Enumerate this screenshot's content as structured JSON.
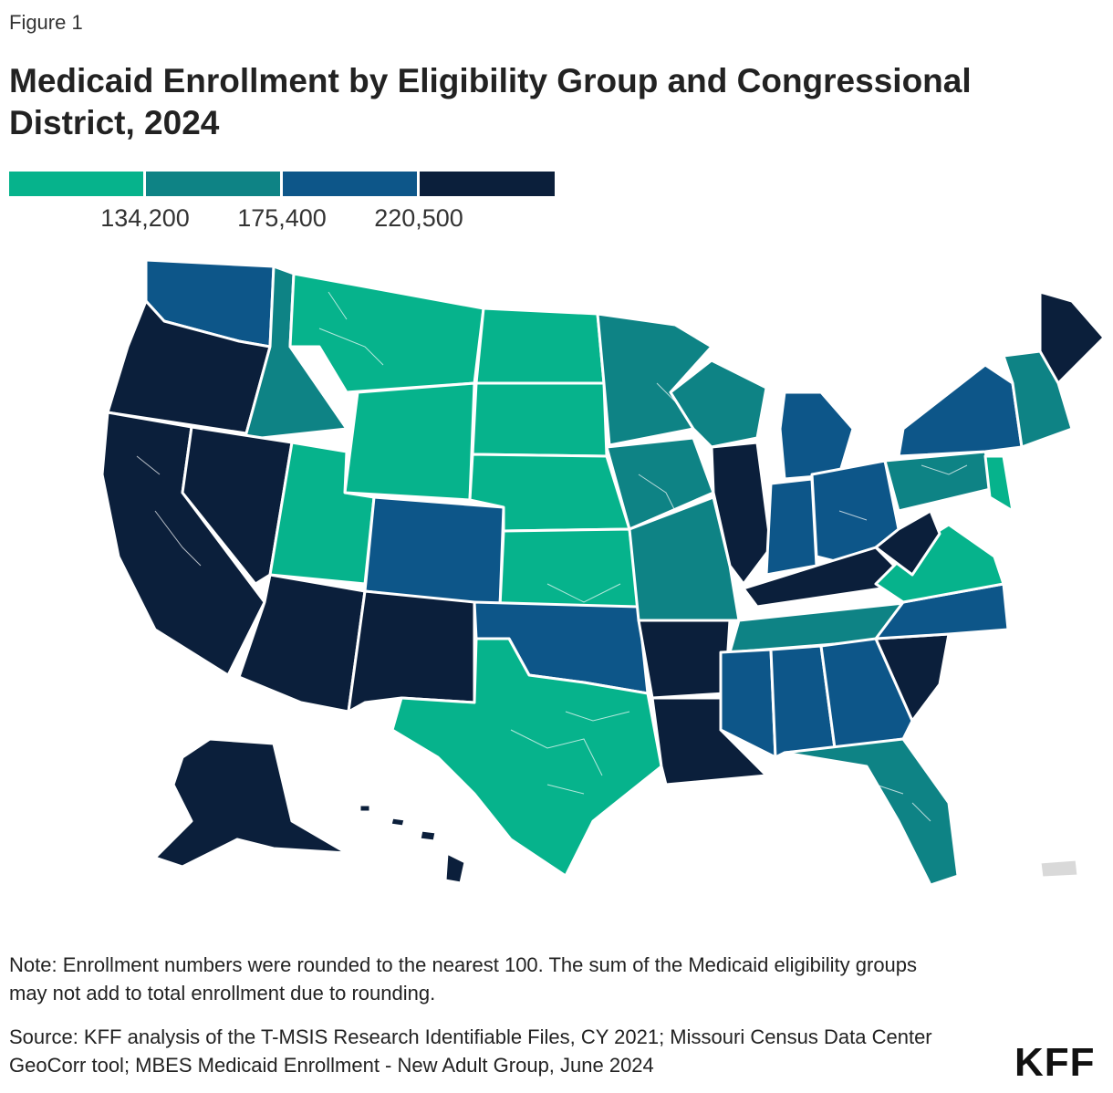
{
  "figure_label": "Figure 1",
  "title": "Medicaid Enrollment by Eligibility Group and Congressional District, 2024",
  "legend": {
    "colors": [
      "#06b38c",
      "#0e8385",
      "#0d5689",
      "#0b1f3b"
    ],
    "thresholds": [
      "134,200",
      "175,400",
      "220,500"
    ]
  },
  "note": "Note: Enrollment numbers were rounded to the nearest 100. The sum of the Medicaid eligibility groups may not add to total enrollment due to rounding.",
  "source": "Source: KFF analysis of the T-MSIS Research Identifiable Files, CY 2021; Missouri Census Data Center GeoCorr tool; MBES Medicaid Enrollment - New Adult Group, June 2024",
  "logo": "KFF"
}
